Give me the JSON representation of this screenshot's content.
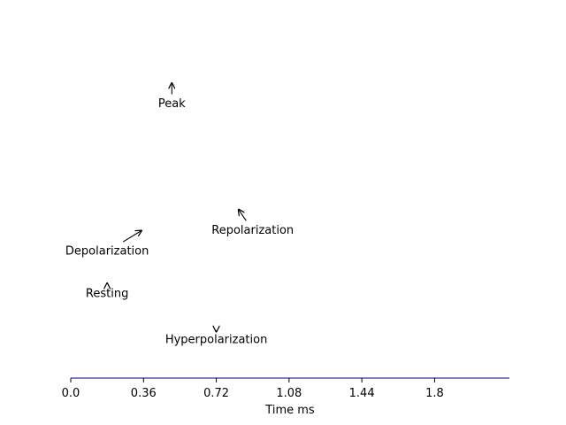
{
  "chart_data": {
    "type": "line",
    "title": "",
    "xlabel": "Time ms",
    "ylabel": "",
    "xlim": [
      0.0,
      2.17
    ],
    "ylim": [
      -100,
      55
    ],
    "xticks": [
      0.0,
      0.36,
      0.72,
      1.08,
      1.44,
      1.8
    ],
    "xtick_labels": [
      "0.0",
      "0.36",
      "0.72",
      "1.08",
      "1.44",
      "1.8"
    ],
    "show_left_axis": false,
    "show_top_axis": false,
    "show_right_axis": false,
    "grid": false,
    "series": [],
    "annotations": [
      {
        "text": "Peak",
        "point": [
          0.5,
          40
        ],
        "text_at": [
          0.5,
          30
        ]
      },
      {
        "text": "Repolarization",
        "point": [
          0.83,
          -20
        ],
        "text_at": [
          0.9,
          -30
        ]
      },
      {
        "text": "Depolarization",
        "point": [
          0.35,
          -30
        ],
        "text_at": [
          0.18,
          -40
        ]
      },
      {
        "text": "Resting",
        "point": [
          0.18,
          -55
        ],
        "text_at": [
          0.18,
          -60
        ]
      },
      {
        "text": "Hyperpolarization",
        "point": [
          0.72,
          -78
        ],
        "text_at": [
          0.72,
          -82
        ]
      }
    ],
    "colors": {
      "axis": "#000000",
      "bottom_spine": "#000080",
      "arrow": "#000000",
      "text": "#000000"
    }
  }
}
